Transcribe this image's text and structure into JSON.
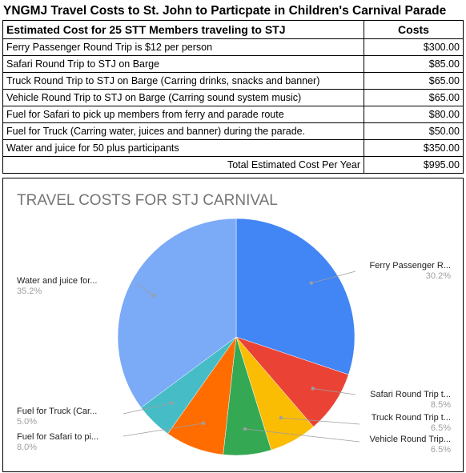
{
  "sheet": {
    "title": "YNGMJ Travel Costs to St. John to Particpate in Children's Carnival Parade"
  },
  "table": {
    "header": {
      "description": "Estimated Cost for 25 STT Members traveling to STJ",
      "cost": "Costs"
    },
    "rows": [
      {
        "description": "Ferry Passenger Round Trip is $12 per person",
        "cost": "$300.00"
      },
      {
        "description": "Safari Round Trip to STJ on Barge",
        "cost": "$85.00"
      },
      {
        "description": "Truck Round Trip to STJ on Barge  (Carring drinks, snacks and banner)",
        "cost": "$65.00"
      },
      {
        "description": "Vehicle Round Trip to STJ on Barge (Carring sound system music)",
        "cost": "$65.00"
      },
      {
        "description": "Fuel for Safari to pick up members from ferry and parade route",
        "cost": "$80.00"
      },
      {
        "description": "Fuel for Truck (Carring water, juices and banner) during the parade.",
        "cost": "$50.00"
      },
      {
        "description": "Water and juice for 50  plus participants",
        "cost": "$350.00"
      }
    ],
    "total": {
      "description": "Total Estimated Cost Per Year",
      "cost": "$995.00"
    }
  },
  "chart_data": {
    "type": "pie",
    "title": "TRAVEL COSTS FOR STJ CARNIVAL",
    "start_angle_deg": 0,
    "direction": "clockwise",
    "slices": [
      {
        "label": "Ferry Passenger R...",
        "value": 300,
        "pct": "30.2%",
        "color": "#4285f4"
      },
      {
        "label": "Safari Round Trip t...",
        "value": 85,
        "pct": "8.5%",
        "color": "#ea4335"
      },
      {
        "label": "Truck Round Trip t...",
        "value": 65,
        "pct": "6.5%",
        "color": "#fbbc04"
      },
      {
        "label": "Vehicle Round Trip...",
        "value": 65,
        "pct": "6.5%",
        "color": "#34a853"
      },
      {
        "label": "Fuel for Safari to pi...",
        "value": 80,
        "pct": "8.0%",
        "color": "#ff6d01"
      },
      {
        "label": "Fuel for Truck (Car...",
        "value": 50,
        "pct": "5.0%",
        "color": "#46bdc6"
      },
      {
        "label": "Water and juice for...",
        "value": 350,
        "pct": "35.2%",
        "color": "#7baaf7"
      }
    ]
  }
}
